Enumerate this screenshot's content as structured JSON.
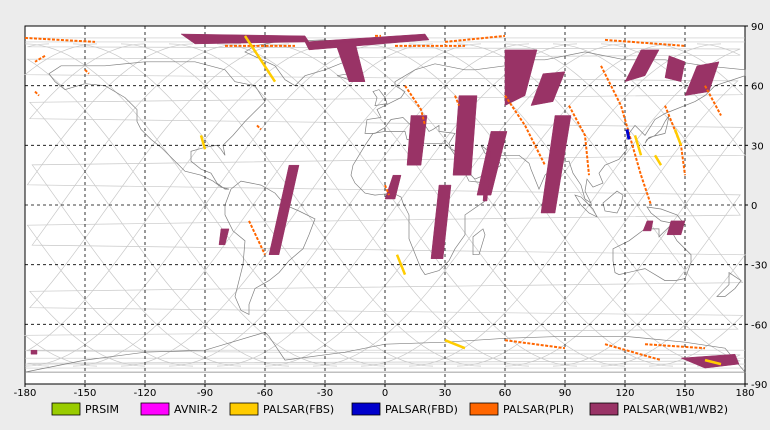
{
  "map": {
    "extent": {
      "lon": [
        -180,
        180
      ],
      "lat": [
        -90,
        90
      ]
    },
    "x_ticks": [
      -180,
      -150,
      -120,
      -90,
      -60,
      -30,
      0,
      30,
      60,
      90,
      120,
      150,
      180
    ],
    "y_ticks": [
      90,
      60,
      30,
      0,
      -30,
      -60,
      -90
    ],
    "grid": "dashed",
    "background": "#ffffff",
    "coastline_color": "#808080",
    "orbit_color": "#c8c8c8"
  },
  "legend": [
    {
      "label": "PRSIM",
      "color": "#99cc00"
    },
    {
      "label": "AVNIR-2",
      "color": "#ff00ff"
    },
    {
      "label": "PALSAR(FBS)",
      "color": "#ffcc00"
    },
    {
      "label": "PALSAR(FBD)",
      "color": "#0000cc"
    },
    {
      "label": "PALSAR(PLR)",
      "color": "#ff6600"
    },
    {
      "label": "PALSAR(WB1/WB2)",
      "color": "#993366"
    }
  ],
  "coverage": {
    "wb": [
      [
        [
          -102,
          86
        ],
        [
          -40,
          85
        ],
        [
          -38,
          82
        ],
        [
          -95,
          81
        ]
      ],
      [
        [
          -40,
          82
        ],
        [
          20,
          86
        ],
        [
          22,
          83
        ],
        [
          -38,
          78
        ]
      ],
      [
        [
          -25,
          82
        ],
        [
          -18,
          62
        ],
        [
          -10,
          62
        ],
        [
          -15,
          82
        ]
      ],
      [
        [
          -48,
          20
        ],
        [
          -43,
          20
        ],
        [
          -53,
          -25
        ],
        [
          -58,
          -25
        ]
      ],
      [
        [
          4,
          15
        ],
        [
          8,
          15
        ],
        [
          5,
          3
        ],
        [
          0,
          3
        ]
      ],
      [
        [
          37,
          55
        ],
        [
          46,
          55
        ],
        [
          43,
          15
        ],
        [
          34,
          15
        ]
      ],
      [
        [
          13,
          45
        ],
        [
          21,
          45
        ],
        [
          18,
          20
        ],
        [
          11,
          20
        ]
      ],
      [
        [
          53,
          37
        ],
        [
          61,
          37
        ],
        [
          53,
          5
        ],
        [
          46,
          5
        ]
      ],
      [
        [
          51,
          27
        ],
        [
          53,
          27
        ],
        [
          51,
          2
        ],
        [
          49,
          2
        ]
      ],
      [
        [
          27,
          10
        ],
        [
          33,
          10
        ],
        [
          29,
          -27
        ],
        [
          23,
          -27
        ]
      ],
      [
        [
          85,
          45
        ],
        [
          93,
          45
        ],
        [
          85,
          -4
        ],
        [
          78,
          -4
        ]
      ],
      [
        [
          60,
          78
        ],
        [
          76,
          78
        ],
        [
          70,
          55
        ],
        [
          60,
          50
        ]
      ],
      [
        [
          79,
          66
        ],
        [
          90,
          67
        ],
        [
          84,
          52
        ],
        [
          73,
          50
        ]
      ],
      [
        [
          128,
          78
        ],
        [
          137,
          78
        ],
        [
          130,
          65
        ],
        [
          120,
          62
        ]
      ],
      [
        [
          142,
          75
        ],
        [
          150,
          72
        ],
        [
          148,
          62
        ],
        [
          140,
          64
        ]
      ],
      [
        [
          156,
          70
        ],
        [
          167,
          72
        ],
        [
          162,
          57
        ],
        [
          150,
          55
        ]
      ],
      [
        [
          143,
          -8
        ],
        [
          150,
          -8
        ],
        [
          148,
          -15
        ],
        [
          141,
          -15
        ]
      ],
      [
        [
          131,
          -8
        ],
        [
          134,
          -8
        ],
        [
          133,
          -13
        ],
        [
          129,
          -13
        ]
      ],
      [
        [
          148,
          -77
        ],
        [
          175,
          -75
        ],
        [
          177,
          -80
        ],
        [
          160,
          -82
        ]
      ],
      [
        [
          -177,
          -73
        ],
        [
          -174,
          -73
        ],
        [
          -174,
          -75
        ],
        [
          -177,
          -75
        ]
      ],
      [
        [
          -82,
          -12
        ],
        [
          -78,
          -12
        ],
        [
          -80,
          -20
        ],
        [
          -83,
          -20
        ]
      ]
    ],
    "plr": [
      [
        [
          -180,
          84
        ],
        [
          -145,
          82
        ]
      ],
      [
        [
          -80,
          80
        ],
        [
          -45,
          80
        ]
      ],
      [
        [
          -5,
          85
        ],
        [
          -2,
          85
        ]
      ],
      [
        [
          30,
          82
        ],
        [
          60,
          85
        ]
      ],
      [
        [
          5,
          80
        ],
        [
          40,
          80
        ]
      ],
      [
        [
          -170,
          75
        ],
        [
          -175,
          72
        ]
      ],
      [
        [
          -150,
          68
        ],
        [
          -148,
          66
        ]
      ],
      [
        [
          -175,
          57
        ],
        [
          -173,
          55
        ]
      ],
      [
        [
          -64,
          40
        ],
        [
          -62,
          38
        ]
      ],
      [
        [
          -68,
          -8
        ],
        [
          -60,
          -25
        ]
      ],
      [
        [
          10,
          60
        ],
        [
          18,
          48
        ],
        [
          20,
          40
        ]
      ],
      [
        [
          60,
          55
        ],
        [
          70,
          40
        ],
        [
          80,
          20
        ]
      ],
      [
        [
          92,
          50
        ],
        [
          100,
          35
        ],
        [
          102,
          15
        ]
      ],
      [
        [
          108,
          70
        ],
        [
          118,
          50
        ],
        [
          128,
          15
        ],
        [
          133,
          0
        ]
      ],
      [
        [
          140,
          50
        ],
        [
          148,
          30
        ],
        [
          150,
          15
        ]
      ],
      [
        [
          160,
          60
        ],
        [
          168,
          45
        ]
      ],
      [
        [
          0,
          10
        ],
        [
          2,
          5
        ]
      ],
      [
        [
          35,
          55
        ],
        [
          37,
          50
        ]
      ],
      [
        [
          110,
          -70
        ],
        [
          138,
          -78
        ]
      ],
      [
        [
          130,
          -70
        ],
        [
          160,
          -72
        ]
      ],
      [
        [
          60,
          -68
        ],
        [
          90,
          -72
        ]
      ],
      [
        [
          110,
          83
        ],
        [
          150,
          80
        ]
      ]
    ],
    "fbs": [
      [
        [
          -70,
          85
        ],
        [
          -55,
          62
        ]
      ],
      [
        [
          -92,
          35
        ],
        [
          -90,
          28
        ]
      ],
      [
        [
          6,
          -25
        ],
        [
          10,
          -35
        ]
      ],
      [
        [
          30,
          -68
        ],
        [
          40,
          -72
        ]
      ],
      [
        [
          160,
          -78
        ],
        [
          168,
          -80
        ]
      ],
      [
        [
          125,
          35
        ],
        [
          128,
          25
        ]
      ],
      [
        [
          145,
          38
        ],
        [
          148,
          30
        ]
      ],
      [
        [
          135,
          25
        ],
        [
          138,
          20
        ]
      ]
    ],
    "fbd": [
      [
        [
          121,
          38
        ],
        [
          122,
          33
        ]
      ]
    ]
  }
}
